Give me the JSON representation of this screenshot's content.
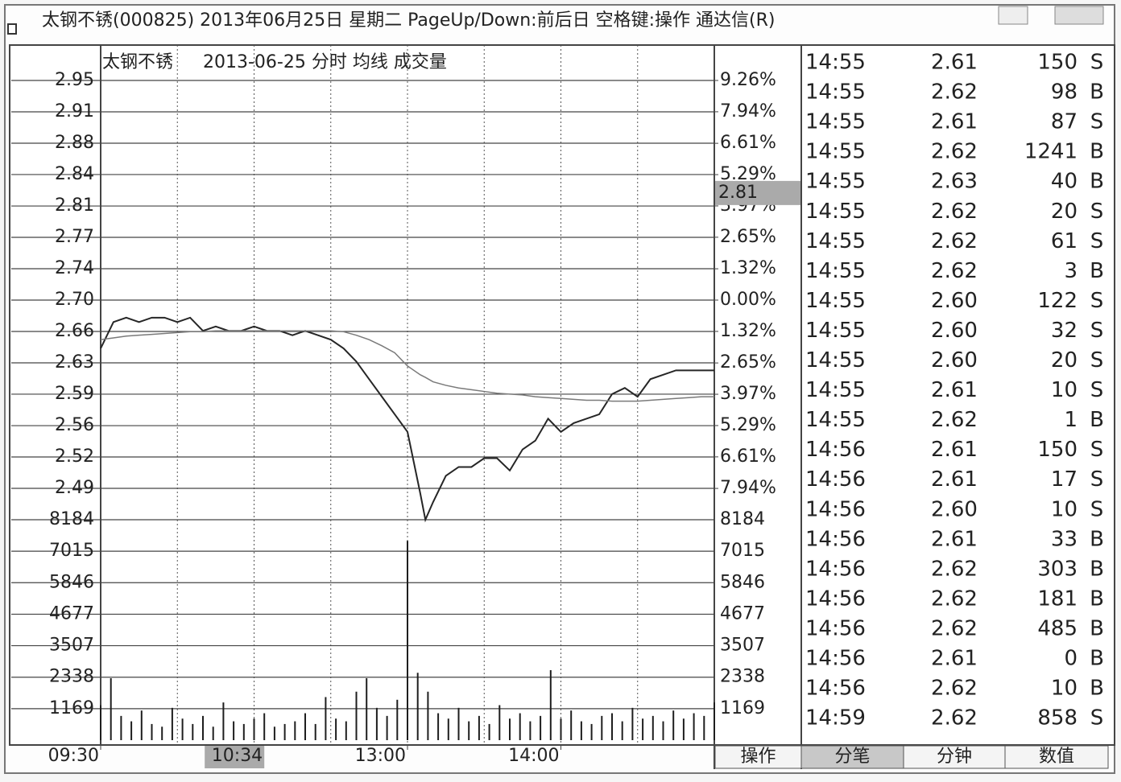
{
  "window": {
    "title": "太钢不锈(000825) 2013年06月25日 星期二 PageUp/Down:前后日 空格键:操作 通达信(R)"
  },
  "chart_data": {
    "type": "line",
    "title": "太钢不锈",
    "subtitle": "2013-06-25 分时 均线 成交量",
    "grid": true,
    "xlim": [
      0,
      240
    ],
    "xticks": [
      {
        "value": 0,
        "label": "09:30"
      },
      {
        "value": 120,
        "label": "13:00"
      },
      {
        "value": 180,
        "label": "14:00"
      }
    ],
    "xgrid": [
      30,
      60,
      90,
      120,
      150,
      180,
      210
    ],
    "ylim": [
      2.45,
      2.95
    ],
    "yticks": [
      {
        "value": 2.95,
        "label": "2.95"
      },
      {
        "value": 2.9143,
        "label": "2.91"
      },
      {
        "value": 2.8786,
        "label": "2.88"
      },
      {
        "value": 2.8429,
        "label": "2.84"
      },
      {
        "value": 2.8071,
        "label": "2.81"
      },
      {
        "value": 2.7714,
        "label": "2.77"
      },
      {
        "value": 2.7357,
        "label": "2.74"
      },
      {
        "value": 2.7,
        "label": "2.70"
      },
      {
        "value": 2.6643,
        "label": "2.66"
      },
      {
        "value": 2.6286,
        "label": "2.63"
      },
      {
        "value": 2.5929,
        "label": "2.59"
      },
      {
        "value": 2.5571,
        "label": "2.56"
      },
      {
        "value": 2.5214,
        "label": "2.52"
      },
      {
        "value": 2.4857,
        "label": "2.49"
      }
    ],
    "y2lim": [
      -9.26,
      9.26
    ],
    "y2ticks": [
      {
        "value": 9.26,
        "label": "9.26%"
      },
      {
        "value": 7.94,
        "label": "7.94%"
      },
      {
        "value": 6.61,
        "label": "6.61%"
      },
      {
        "value": 5.29,
        "label": "5.29%"
      },
      {
        "value": 3.97,
        "label": "3.97%"
      },
      {
        "value": 2.65,
        "label": "2.65%"
      },
      {
        "value": 1.32,
        "label": "1.32%"
      },
      {
        "value": 0,
        "label": "0.00%"
      },
      {
        "value": -1.32,
        "label": "1.32%"
      },
      {
        "value": -2.65,
        "label": "2.65%"
      },
      {
        "value": -3.97,
        "label": "3.97%"
      },
      {
        "value": -5.29,
        "label": "5.29%"
      },
      {
        "value": -6.61,
        "label": "6.61%"
      },
      {
        "value": -7.94,
        "label": "7.94%"
      }
    ],
    "x": [
      0,
      5,
      10,
      15,
      20,
      25,
      30,
      35,
      40,
      45,
      50,
      55,
      60,
      65,
      70,
      75,
      80,
      85,
      90,
      95,
      100,
      105,
      110,
      115,
      120,
      125,
      127,
      130,
      135,
      140,
      145,
      150,
      155,
      160,
      165,
      170,
      175,
      180,
      185,
      190,
      195,
      200,
      205,
      210,
      215,
      220,
      225,
      230,
      235,
      240
    ],
    "series": [
      {
        "color": "#262626",
        "values": [
          2.645,
          2.675,
          2.68,
          2.675,
          2.68,
          2.68,
          2.675,
          2.68,
          2.665,
          2.67,
          2.665,
          2.665,
          2.67,
          2.665,
          2.665,
          2.66,
          2.665,
          2.66,
          2.655,
          2.645,
          2.63,
          2.61,
          2.59,
          2.57,
          2.55,
          2.48,
          2.45,
          2.47,
          2.5,
          2.51,
          2.51,
          2.52,
          2.52,
          2.506,
          2.53,
          2.54,
          2.565,
          2.55,
          2.56,
          2.565,
          2.57,
          2.593,
          2.6,
          2.59,
          2.61,
          2.615,
          2.62,
          2.62,
          2.62,
          2.62
        ]
      },
      {
        "color": "#7a7a7a",
        "values": [
          2.655,
          2.657,
          2.659,
          2.66,
          2.661,
          2.662,
          2.663,
          2.664,
          2.664,
          2.665,
          2.665,
          2.665,
          2.665,
          2.665,
          2.665,
          2.665,
          2.665,
          2.665,
          2.665,
          2.664,
          2.66,
          2.655,
          2.648,
          2.64,
          2.625,
          2.615,
          2.612,
          2.607,
          2.603,
          2.6,
          2.598,
          2.596,
          2.594,
          2.593,
          2.592,
          2.59,
          2.589,
          2.588,
          2.587,
          2.586,
          2.586,
          2.585,
          2.585,
          2.585,
          2.586,
          2.587,
          2.588,
          2.589,
          2.59,
          2.59
        ]
      }
    ],
    "volume": {
      "color": "#1e1e1e",
      "ylim": [
        0,
        8184
      ],
      "yticks": [
        8184,
        7015,
        5846,
        4677,
        3507,
        2338,
        1169
      ],
      "x": [
        0,
        4,
        8,
        12,
        16,
        20,
        24,
        28,
        32,
        36,
        40,
        44,
        48,
        52,
        56,
        60,
        64,
        68,
        72,
        76,
        80,
        84,
        88,
        92,
        96,
        100,
        104,
        108,
        112,
        116,
        120,
        124,
        128,
        132,
        136,
        140,
        144,
        148,
        152,
        156,
        160,
        164,
        168,
        172,
        176,
        180,
        184,
        188,
        192,
        196,
        200,
        204,
        208,
        212,
        216,
        220,
        224,
        228,
        232,
        236,
        240
      ],
      "values": [
        1300,
        2300,
        900,
        700,
        1100,
        600,
        500,
        1200,
        800,
        600,
        900,
        500,
        1400,
        700,
        600,
        800,
        1000,
        500,
        600,
        700,
        1000,
        600,
        1600,
        800,
        700,
        1800,
        2300,
        1200,
        900,
        1500,
        7400,
        2500,
        1800,
        1000,
        800,
        1200,
        700,
        900,
        600,
        1300,
        800,
        1000,
        700,
        900,
        2600,
        800,
        1100,
        700,
        600,
        900,
        1000,
        700,
        1200,
        800,
        900,
        700,
        1100,
        800,
        1000,
        900,
        1400
      ]
    },
    "cursor": {
      "x": {
        "value": 64,
        "label": "10:34"
      },
      "y": {
        "value": 2.81,
        "label": "2.81"
      }
    }
  },
  "trades": {
    "rows": [
      [
        "14:55",
        "2.61",
        "150",
        "S"
      ],
      [
        "14:55",
        "2.62",
        "98",
        "B"
      ],
      [
        "14:55",
        "2.61",
        "87",
        "S"
      ],
      [
        "14:55",
        "2.62",
        "1241",
        "B"
      ],
      [
        "14:55",
        "2.63",
        "40",
        "B"
      ],
      [
        "14:55",
        "2.62",
        "20",
        "S"
      ],
      [
        "14:55",
        "2.62",
        "61",
        "S"
      ],
      [
        "14:55",
        "2.62",
        "3",
        "B"
      ],
      [
        "14:55",
        "2.60",
        "122",
        "S"
      ],
      [
        "14:55",
        "2.60",
        "32",
        "S"
      ],
      [
        "14:55",
        "2.60",
        "20",
        "S"
      ],
      [
        "14:55",
        "2.61",
        "10",
        "S"
      ],
      [
        "14:55",
        "2.62",
        "1",
        "B"
      ],
      [
        "14:56",
        "2.61",
        "150",
        "S"
      ],
      [
        "14:56",
        "2.61",
        "17",
        "S"
      ],
      [
        "14:56",
        "2.60",
        "10",
        "S"
      ],
      [
        "14:56",
        "2.61",
        "33",
        "B"
      ],
      [
        "14:56",
        "2.62",
        "303",
        "B"
      ],
      [
        "14:56",
        "2.62",
        "181",
        "B"
      ],
      [
        "14:56",
        "2.62",
        "485",
        "B"
      ],
      [
        "14:56",
        "2.61",
        "0",
        "B"
      ],
      [
        "14:56",
        "2.62",
        "10",
        "B"
      ],
      [
        "14:59",
        "2.62",
        "858",
        "S"
      ]
    ]
  },
  "tabs": [
    "操作",
    "分笔",
    "分钟",
    "数值"
  ]
}
